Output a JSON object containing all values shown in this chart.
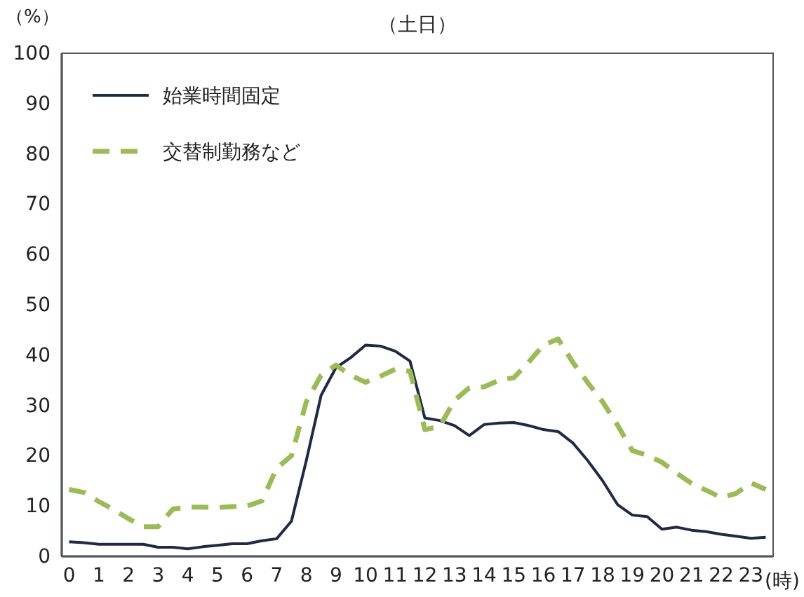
{
  "chart_data": {
    "type": "line",
    "title": "（土日）",
    "ylabel": "（%）",
    "xlabel": "(時)",
    "x": [
      0,
      0.5,
      1,
      1.5,
      2,
      2.5,
      3,
      3.5,
      4,
      4.5,
      5,
      5.5,
      6,
      6.5,
      7,
      7.5,
      8,
      8.5,
      9,
      9.5,
      10,
      10.5,
      11,
      11.5,
      12,
      12.5,
      13,
      13.5,
      14,
      14.5,
      15,
      15.5,
      16,
      16.5,
      17,
      17.5,
      18,
      18.5,
      19,
      19.5,
      20,
      20.5,
      21,
      21.5,
      22,
      22.5,
      23,
      23.5
    ],
    "xlim": [
      -0.25,
      23.75
    ],
    "xticks": [
      0,
      1,
      2,
      3,
      4,
      5,
      6,
      7,
      8,
      9,
      10,
      11,
      12,
      13,
      14,
      15,
      16,
      17,
      18,
      19,
      20,
      21,
      22,
      23
    ],
    "ylim": [
      0,
      100
    ],
    "yticks": [
      0,
      10,
      20,
      30,
      40,
      50,
      60,
      70,
      80,
      90,
      100
    ],
    "grid": false,
    "legend": "top left",
    "marker": "none",
    "series": [
      {
        "name": "始業時間固定",
        "color": "#1f2a44",
        "line_style": "solid",
        "values": [
          2.9,
          2.7,
          2.4,
          2.4,
          2.4,
          2.4,
          1.8,
          1.8,
          1.5,
          1.9,
          2.2,
          2.5,
          2.5,
          3.1,
          3.5,
          7,
          19,
          32,
          37.5,
          39.5,
          42,
          41.8,
          40.8,
          38.8,
          27.5,
          27,
          26,
          24,
          26.2,
          26.5,
          26.6,
          26,
          25.2,
          24.8,
          22.5,
          19,
          15,
          10.3,
          8.2,
          7.9,
          5.4,
          5.8,
          5.2,
          4.9,
          4.4,
          4,
          3.6,
          3.8
        ]
      },
      {
        "name": "交替制勤務など",
        "color": "#9bbb59",
        "line_style": "dashed",
        "values": [
          13.3,
          12.7,
          10.9,
          9.3,
          7.5,
          5.9,
          5.9,
          9.4,
          9.8,
          9.8,
          9.7,
          9.9,
          10,
          11,
          17.5,
          20,
          30.7,
          36,
          38,
          36,
          34.6,
          35.8,
          37.2,
          36.8,
          25.2,
          25.8,
          31,
          33.5,
          33.7,
          35,
          35.5,
          38.6,
          42,
          43.2,
          38.5,
          34.5,
          30.7,
          26.1,
          21,
          20.1,
          18.7,
          16.5,
          14.5,
          13.1,
          11.7,
          12.5,
          14.6,
          13.3
        ]
      }
    ]
  }
}
